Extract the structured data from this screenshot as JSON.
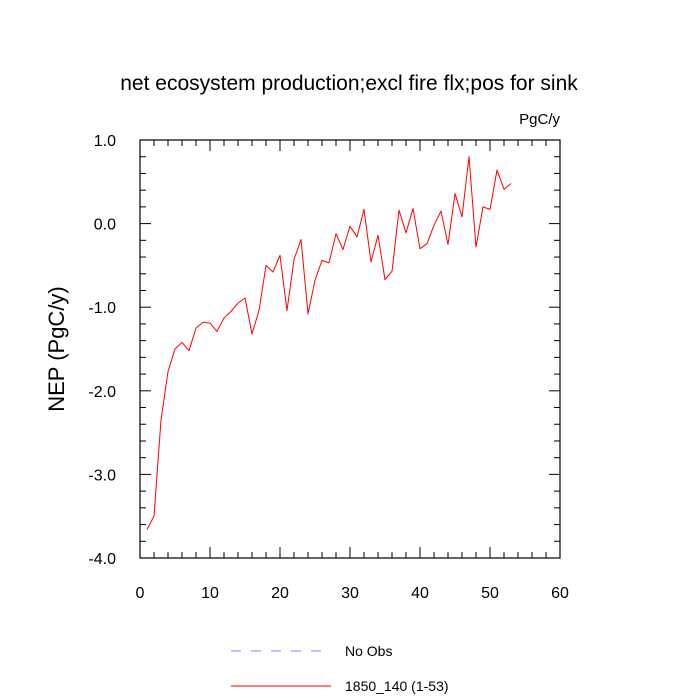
{
  "chart_data": {
    "type": "line",
    "title": "net ecosystem production;excl fire flx;pos for sink",
    "units": "PgC/y",
    "ylabel": "NEP  (PgC/y)",
    "xlabel": "",
    "xlim": [
      0,
      60
    ],
    "ylim": [
      -4.0,
      1.0
    ],
    "xticks": [
      0,
      10,
      20,
      30,
      40,
      50,
      60
    ],
    "xtick_labels": [
      "0",
      "10",
      "20",
      "30",
      "40",
      "50",
      "60"
    ],
    "yticks": [
      -4.0,
      -3.0,
      -2.0,
      -1.0,
      0.0,
      1.0
    ],
    "ytick_labels": [
      "-4.0",
      "-3.0",
      "-2.0",
      "-1.0",
      "0.0",
      "1.0"
    ],
    "x_minor_step": 2,
    "y_minor_step": 0.2,
    "series": [
      {
        "name": "No Obs",
        "color": "#8080ff",
        "style": "dashed",
        "x": [],
        "values": []
      },
      {
        "name": "1850_140 (1-53)",
        "color": "#ff0000",
        "style": "solid",
        "x": [
          1,
          2,
          3,
          4,
          5,
          6,
          7,
          8,
          9,
          10,
          11,
          12,
          13,
          14,
          15,
          16,
          17,
          18,
          19,
          20,
          21,
          22,
          23,
          24,
          25,
          26,
          27,
          28,
          29,
          30,
          31,
          32,
          33,
          34,
          35,
          36,
          37,
          38,
          39,
          40,
          41,
          42,
          43,
          44,
          45,
          46,
          47,
          48,
          49,
          50,
          51,
          52,
          53
        ],
        "values": [
          -3.66,
          -3.5,
          -2.35,
          -1.77,
          -1.5,
          -1.42,
          -1.52,
          -1.25,
          -1.18,
          -1.19,
          -1.29,
          -1.13,
          -1.05,
          -0.95,
          -0.89,
          -1.32,
          -1.04,
          -0.5,
          -0.58,
          -0.38,
          -1.04,
          -0.43,
          -0.19,
          -1.08,
          -0.68,
          -0.44,
          -0.47,
          -0.12,
          -0.31,
          -0.03,
          -0.16,
          0.17,
          -0.46,
          -0.14,
          -0.67,
          -0.57,
          0.16,
          -0.11,
          0.18,
          -0.3,
          -0.24,
          -0.02,
          0.15,
          -0.25,
          0.36,
          0.08,
          0.8,
          -0.28,
          0.2,
          0.17,
          0.64,
          0.41,
          0.48
        ]
      }
    ],
    "legend": [
      {
        "label": "No Obs",
        "color": "#8080ff",
        "style": "dashed"
      },
      {
        "label": "1850_140 (1-53)",
        "color": "#ff0000",
        "style": "solid"
      }
    ],
    "legend_position": "bottom-center",
    "grid": false
  }
}
